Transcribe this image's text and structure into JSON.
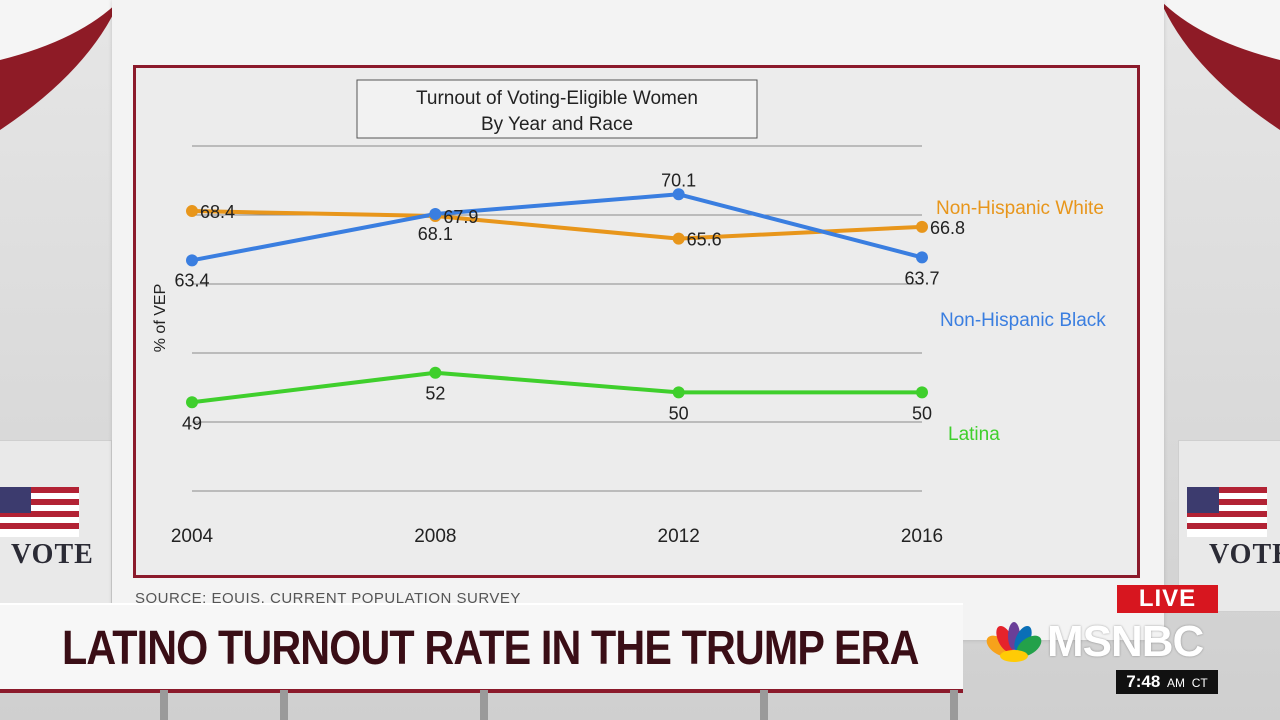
{
  "chart_data": {
    "type": "line",
    "title": "Turnout of Voting-Eligible Women By Year and Race",
    "title_lines": [
      "Turnout of Voting-Eligible Women",
      "By Year and Race"
    ],
    "ylabel": "% of VEP",
    "xlabel": "",
    "categories": [
      "2004",
      "2008",
      "2012",
      "2016"
    ],
    "ylim": [
      40,
      75
    ],
    "grid": true,
    "series": [
      {
        "name": "Non-Hispanic White",
        "color": "#e8961b",
        "values": [
          68.4,
          67.9,
          65.6,
          66.8
        ],
        "labels": [
          "68.4",
          "67.9",
          "65.6",
          "66.8"
        ]
      },
      {
        "name": "Non-Hispanic Black",
        "color": "#3a7ee0",
        "values": [
          63.4,
          68.1,
          70.1,
          63.7
        ],
        "labels": [
          "63.4",
          "68.1",
          "70.1",
          "63.7"
        ]
      },
      {
        "name": "Latina",
        "color": "#3fcf2c",
        "values": [
          49,
          52,
          50,
          50
        ],
        "labels": [
          "49",
          "52",
          "50",
          "50"
        ]
      }
    ]
  },
  "source": "SOURCE: EQUIS, CURRENT POPULATION SURVEY",
  "headline": "LATINO TURNOUT RATE IN THE TRUMP ERA",
  "live_label": "LIVE",
  "network_name": "MSNBC",
  "clock": {
    "time": "7:48",
    "ampm": "AM",
    "zone": "CT"
  },
  "backdrop": {
    "vote_sign": "VOTE",
    "vote_sign_right": "VOTE"
  },
  "colors": {
    "frame": "#8b1a2b",
    "live": "#d7161f",
    "headline": "#3a0e16"
  }
}
